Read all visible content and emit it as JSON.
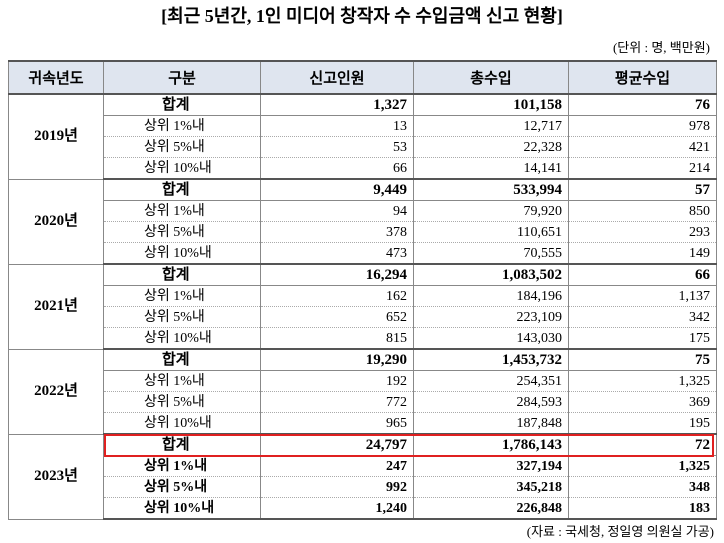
{
  "header": {
    "title": "[최근 5년간, 1인 미디어 창작자 수 수입금액 신고 현황]",
    "unit": "(단위 : 명, 백만원)"
  },
  "table": {
    "columns": [
      "귀속년도",
      "구분",
      "신고인원",
      "총수입",
      "평균수입"
    ],
    "groups": [
      {
        "year": "2019년",
        "rows": [
          [
            "합계",
            "1,327",
            "101,158",
            "76"
          ],
          [
            "상위 1%내",
            "13",
            "12,717",
            "978"
          ],
          [
            "상위 5%내",
            "53",
            "22,328",
            "421"
          ],
          [
            "상위 10%내",
            "66",
            "14,141",
            "214"
          ]
        ]
      },
      {
        "year": "2020년",
        "rows": [
          [
            "합계",
            "9,449",
            "533,994",
            "57"
          ],
          [
            "상위 1%내",
            "94",
            "79,920",
            "850"
          ],
          [
            "상위 5%내",
            "378",
            "110,651",
            "293"
          ],
          [
            "상위 10%내",
            "473",
            "70,555",
            "149"
          ]
        ]
      },
      {
        "year": "2021년",
        "rows": [
          [
            "합계",
            "16,294",
            "1,083,502",
            "66"
          ],
          [
            "상위 1%내",
            "162",
            "184,196",
            "1,137"
          ],
          [
            "상위 5%내",
            "652",
            "223,109",
            "342"
          ],
          [
            "상위 10%내",
            "815",
            "143,030",
            "175"
          ]
        ]
      },
      {
        "year": "2022년",
        "rows": [
          [
            "합계",
            "19,290",
            "1,453,732",
            "75"
          ],
          [
            "상위 1%내",
            "192",
            "254,351",
            "1,325"
          ],
          [
            "상위 5%내",
            "772",
            "284,593",
            "369"
          ],
          [
            "상위 10%내",
            "965",
            "187,848",
            "195"
          ]
        ]
      },
      {
        "year": "2023년",
        "rows": [
          [
            "합계",
            "24,797",
            "1,786,143",
            "72"
          ],
          [
            "상위 1%내",
            "247",
            "327,194",
            "1,325"
          ],
          [
            "상위 5%내",
            "992",
            "345,218",
            "348"
          ],
          [
            "상위 10%내",
            "1,240",
            "226,848",
            "183"
          ]
        ]
      }
    ]
  },
  "footer": {
    "source": "(자료 : 국세청, 정일영 의원실 가공)"
  }
}
